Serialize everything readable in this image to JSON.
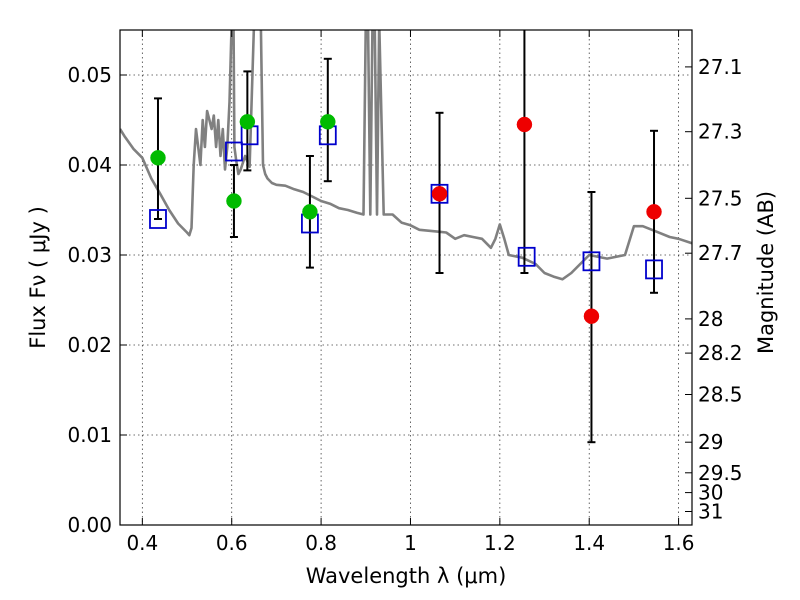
{
  "chart_data": {
    "type": "scatter",
    "title": "",
    "xlabel": "Wavelength  λ (μm)",
    "ylabel": "Flux  Fν  ( μJy )",
    "y2label": "Magnitude (AB)",
    "xlim": [
      0.35,
      1.63
    ],
    "ylim": [
      0.0,
      0.055
    ],
    "x_ticks": [
      0.4,
      0.6,
      0.8,
      1.0,
      1.2,
      1.4,
      1.6
    ],
    "x_tick_labels": [
      "0.4",
      "0.6",
      "0.8",
      "1",
      "1.2",
      "1.4",
      "1.6"
    ],
    "y_ticks": [
      0.0,
      0.01,
      0.02,
      0.03,
      0.04,
      0.05
    ],
    "y_tick_labels": [
      "0.00",
      "0.01",
      "0.02",
      "0.03",
      "0.04",
      "0.05"
    ],
    "y2_ticks": [
      {
        "label": "27.1",
        "flux": 0.0509
      },
      {
        "label": "27.3",
        "flux": 0.0437
      },
      {
        "label": "27.5",
        "flux": 0.0363
      },
      {
        "label": "27.7",
        "flux": 0.0302
      },
      {
        "label": "28",
        "flux": 0.0229
      },
      {
        "label": "28.2",
        "flux": 0.0191
      },
      {
        "label": "28.5",
        "flux": 0.0145
      },
      {
        "label": "29",
        "flux": 0.0092
      },
      {
        "label": "29.5",
        "flux": 0.0058
      },
      {
        "label": "30",
        "flux": 0.0036
      },
      {
        "label": "31",
        "flux": 0.0015
      }
    ],
    "grid": true,
    "colors": {
      "model_line": "#808080",
      "green_points": "#00bb00",
      "red_points": "#ee0000",
      "model_squares": "#0000cc",
      "error_bars": "#000000"
    },
    "series": [
      {
        "kind": "line",
        "x": [
          0.35,
          0.36,
          0.38,
          0.4,
          0.42,
          0.44,
          0.46,
          0.48,
          0.5,
          0.505,
          0.51,
          0.515,
          0.52,
          0.525,
          0.53,
          0.535,
          0.54,
          0.545,
          0.55,
          0.555,
          0.56,
          0.565,
          0.57,
          0.575,
          0.58,
          0.585,
          0.59,
          0.595,
          0.6,
          0.602,
          0.604,
          0.606,
          0.61,
          0.615,
          0.62,
          0.63,
          0.64,
          0.65,
          0.655,
          0.66,
          0.665,
          0.67,
          0.675,
          0.68,
          0.69,
          0.7,
          0.72,
          0.74,
          0.76,
          0.78,
          0.8,
          0.82,
          0.84,
          0.86,
          0.88,
          0.895,
          0.9,
          0.905,
          0.91,
          0.915,
          0.92,
          0.925,
          0.93,
          0.94,
          0.96,
          0.98,
          1.0,
          1.02,
          1.04,
          1.06,
          1.08,
          1.1,
          1.12,
          1.14,
          1.16,
          1.18,
          1.19,
          1.2,
          1.21,
          1.22,
          1.25,
          1.28,
          1.3,
          1.32,
          1.34,
          1.36,
          1.4,
          1.44,
          1.48,
          1.5,
          1.52,
          1.55,
          1.58,
          1.6,
          1.63
        ],
        "y": [
          0.044,
          0.0432,
          0.0418,
          0.0408,
          0.0385,
          0.0368,
          0.035,
          0.0335,
          0.0325,
          0.0322,
          0.033,
          0.04,
          0.044,
          0.042,
          0.04,
          0.045,
          0.042,
          0.046,
          0.045,
          0.044,
          0.0455,
          0.042,
          0.045,
          0.041,
          0.044,
          0.0395,
          0.042,
          0.047,
          0.056,
          0.056,
          0.056,
          0.042,
          0.0405,
          0.039,
          0.0395,
          0.041,
          0.0398,
          0.056,
          0.056,
          0.056,
          0.056,
          0.04,
          0.039,
          0.0385,
          0.038,
          0.0378,
          0.0377,
          0.0373,
          0.037,
          0.0365,
          0.036,
          0.0357,
          0.0352,
          0.035,
          0.0347,
          0.0345,
          0.056,
          0.056,
          0.0345,
          0.056,
          0.056,
          0.0345,
          0.056,
          0.0345,
          0.0345,
          0.0336,
          0.0333,
          0.0328,
          0.0327,
          0.0326,
          0.0325,
          0.0318,
          0.0322,
          0.032,
          0.0318,
          0.0308,
          0.0318,
          0.0334,
          0.0318,
          0.03,
          0.0297,
          0.029,
          0.028,
          0.0276,
          0.0273,
          0.028,
          0.03,
          0.0296,
          0.03,
          0.0332,
          0.0332,
          0.0326,
          0.032,
          0.0318,
          0.0313
        ]
      },
      {
        "kind": "scatter",
        "marker": "circle",
        "color": "green",
        "x": [
          0.435,
          0.605,
          0.635,
          0.775,
          0.815
        ],
        "y": [
          0.0408,
          0.036,
          0.0448,
          0.0348,
          0.0448
        ],
        "yerr_low": [
          0.0068,
          0.004,
          0.0054,
          0.0062,
          0.0066
        ],
        "yerr_high": [
          0.0066,
          0.004,
          0.0056,
          0.0062,
          0.007
        ]
      },
      {
        "kind": "scatter",
        "marker": "circle",
        "color": "red",
        "x": [
          1.065,
          1.255,
          1.405,
          1.545
        ],
        "y": [
          0.0368,
          0.0445,
          0.0232,
          0.0348
        ],
        "yerr_low": [
          0.0088,
          0.0165,
          0.014,
          0.009
        ],
        "yerr_high": [
          0.009,
          0.0115,
          0.0138,
          0.009
        ]
      },
      {
        "kind": "scatter",
        "marker": "square",
        "color": "blue",
        "x": [
          0.435,
          0.605,
          0.64,
          0.775,
          0.815,
          1.065,
          1.26,
          1.405,
          1.545
        ],
        "y": [
          0.034,
          0.0415,
          0.0433,
          0.0335,
          0.0433,
          0.0368,
          0.0298,
          0.0293,
          0.0284
        ]
      }
    ]
  }
}
